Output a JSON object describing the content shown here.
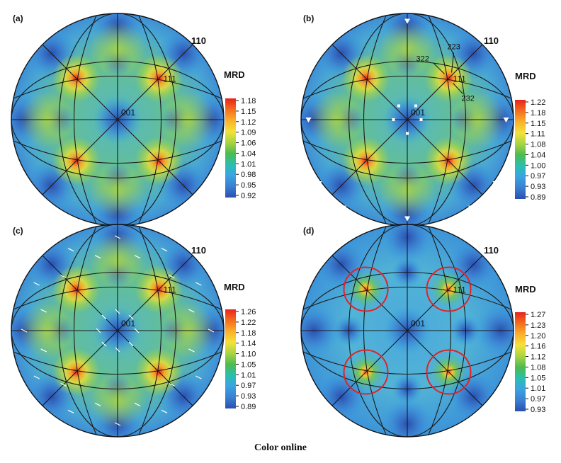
{
  "figure": {
    "caption": "Color online",
    "color_bar_title": "MRD",
    "panels": [
      {
        "id": "a",
        "label": "(a)",
        "pole_labels": {
          "center": "001",
          "edge": "110",
          "pole111": "111"
        },
        "colorbar_ticks": [
          "1.18",
          "1.15",
          "1.12",
          "1.09",
          "1.06",
          "1.04",
          "1.01",
          "0.98",
          "0.95",
          "0.92"
        ],
        "annotations": [],
        "circled_111": false,
        "markers": "none"
      },
      {
        "id": "b",
        "label": "(b)",
        "pole_labels": {
          "center": "001",
          "edge": "110",
          "pole111": "111"
        },
        "colorbar_ticks": [
          "1.22",
          "1.18",
          "1.15",
          "1.11",
          "1.08",
          "1.04",
          "1.00",
          "0.97",
          "0.93",
          "0.89"
        ],
        "annotations": [
          "322",
          "223",
          "232"
        ],
        "circled_111": false,
        "markers": "triangles"
      },
      {
        "id": "c",
        "label": "(c)",
        "pole_labels": {
          "center": "001",
          "edge": "110",
          "pole111": "111"
        },
        "colorbar_ticks": [
          "1.26",
          "1.22",
          "1.18",
          "1.14",
          "1.10",
          "1.05",
          "1.01",
          "0.97",
          "0.93",
          "0.89"
        ],
        "annotations": [],
        "circled_111": false,
        "markers": "arrows"
      },
      {
        "id": "d",
        "label": "(d)",
        "pole_labels": {
          "center": "001",
          "edge": "110",
          "pole111": "111"
        },
        "colorbar_ticks": [
          "1.27",
          "1.23",
          "1.20",
          "1.16",
          "1.12",
          "1.08",
          "1.05",
          "1.01",
          "0.97",
          "0.93"
        ],
        "annotations": [],
        "circled_111": true,
        "markers": "none"
      }
    ],
    "colors": {
      "colorbar": [
        "#e8231c",
        "#f46d1f",
        "#fbb02a",
        "#f4e23a",
        "#a9d443",
        "#4dbb4e",
        "#2bbfb0",
        "#3aa3e2",
        "#3a7fd1",
        "#2a4fb0"
      ],
      "circle": "#e02424"
    }
  }
}
